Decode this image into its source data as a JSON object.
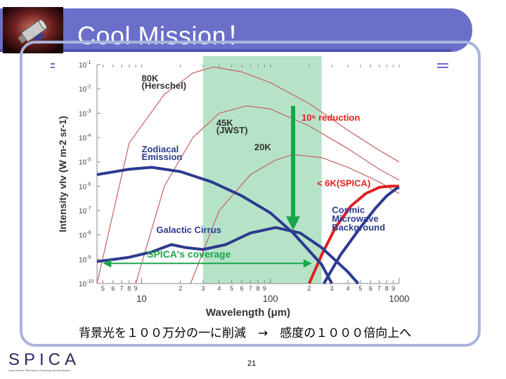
{
  "slide": {
    "title": "Cool Mission！",
    "caption": "背景光を１００万分の一に削減　→　感度の１０００倍向上へ",
    "page_number": "21",
    "logo_text": "SPICA",
    "logo_subtitle": "Space Infrared Telescope for Cosmology and Astrophysics",
    "accent_color": "#6a6fc9"
  },
  "chart_data": {
    "type": "line",
    "xlabel": "Wavelength (μm)",
    "ylabel": "Intensity vIv (W m-2 sr-1)",
    "x_scale": "log",
    "y_scale": "log",
    "xlim": [
      4.5,
      1000
    ],
    "ylim": [
      1e-10,
      0.1
    ],
    "x_major_ticks": [
      "10",
      "100",
      "1000"
    ],
    "x_minor_tick_labels": [
      "5",
      "6",
      "7",
      "8",
      "9",
      "2",
      "3",
      "4",
      "5",
      "6",
      "7",
      "8",
      "9",
      "2",
      "3",
      "4",
      "5",
      "6",
      "7",
      "8",
      "9"
    ],
    "y_tick_labels": [
      "10-1",
      "10-2",
      "10-3",
      "10-4",
      "10-5",
      "10-6",
      "10-7",
      "10-8",
      "10-9",
      "10-10"
    ],
    "highlight_band": {
      "x_range": [
        30,
        250
      ],
      "color": "#b6e3c8"
    },
    "spica_coverage": {
      "x_range": [
        5,
        210
      ],
      "label": "SPICA's coverage",
      "color": "#1aa54b"
    },
    "reduction_arrow": {
      "x": 150,
      "y_from": 0.002,
      "y_to": 2e-08,
      "label": "10⁶ reduction",
      "label_color": "#e02020",
      "color": "#1aa54b"
    },
    "series": [
      {
        "name": "80K (Herschel)",
        "color": "#c86060",
        "style": "thin",
        "points": [
          [
            4.5,
            1e-10
          ],
          [
            8,
            6e-05
          ],
          [
            15,
            0.006
          ],
          [
            25,
            0.045
          ],
          [
            36,
            0.08
          ],
          [
            60,
            0.05
          ],
          [
            100,
            0.018
          ],
          [
            200,
            0.0025
          ],
          [
            400,
            0.0002
          ],
          [
            700,
            3e-05
          ],
          [
            1000,
            1e-05
          ]
        ]
      },
      {
        "name": "45K (JWST)",
        "color": "#c86060",
        "style": "thin",
        "points": [
          [
            9,
            1e-10
          ],
          [
            15,
            1e-06
          ],
          [
            25,
            0.0001
          ],
          [
            40,
            0.001
          ],
          [
            65,
            0.002
          ],
          [
            100,
            0.0015
          ],
          [
            200,
            0.0003
          ],
          [
            400,
            3.5e-05
          ],
          [
            700,
            5e-06
          ],
          [
            1000,
            1.8e-06
          ]
        ]
      },
      {
        "name": "20K",
        "color": "#c86060",
        "style": "thin",
        "points": [
          [
            24,
            1e-10
          ],
          [
            40,
            1e-07
          ],
          [
            70,
            3e-06
          ],
          [
            110,
            1.2e-05
          ],
          [
            150,
            2e-05
          ],
          [
            250,
            1.5e-05
          ],
          [
            400,
            6e-06
          ],
          [
            700,
            1.5e-06
          ],
          [
            1000,
            5e-07
          ]
        ]
      },
      {
        "name": "6K(SPICA)",
        "color": "#e02020",
        "style": "bold",
        "points": [
          [
            200,
            1e-10
          ],
          [
            250,
            1.5e-09
          ],
          [
            320,
            2e-08
          ],
          [
            420,
            1.5e-07
          ],
          [
            550,
            5e-07
          ],
          [
            700,
            9e-07
          ],
          [
            850,
            1e-06
          ],
          [
            1000,
            1e-06
          ]
        ]
      },
      {
        "name": "Zodiacal Emission",
        "color": "#2c3a8f",
        "style": "bold",
        "points": [
          [
            4.5,
            3e-06
          ],
          [
            8,
            5e-06
          ],
          [
            12,
            6e-06
          ],
          [
            20,
            4e-06
          ],
          [
            35,
            1.5e-06
          ],
          [
            60,
            4e-07
          ],
          [
            100,
            8e-08
          ],
          [
            150,
            1.2e-08
          ],
          [
            250,
            6e-10
          ],
          [
            300,
            1e-10
          ]
        ]
      },
      {
        "name": "Galactic Cirrus",
        "color": "#2c3a8f",
        "style": "bold",
        "points": [
          [
            4.5,
            8e-10
          ],
          [
            8,
            1.2e-09
          ],
          [
            12,
            2e-09
          ],
          [
            17,
            4e-09
          ],
          [
            22,
            3e-09
          ],
          [
            30,
            2.5e-09
          ],
          [
            45,
            4e-09
          ],
          [
            70,
            1.2e-08
          ],
          [
            110,
            2e-08
          ],
          [
            170,
            1.2e-08
          ],
          [
            250,
            3e-09
          ],
          [
            400,
            3e-10
          ],
          [
            480,
            1e-10
          ]
        ]
      },
      {
        "name": "Cosmic Microwave Background",
        "color": "#2c3a8f",
        "style": "bold",
        "points": [
          [
            260,
            1e-10
          ],
          [
            350,
            1.5e-09
          ],
          [
            500,
            2e-08
          ],
          [
            650,
            1.2e-07
          ],
          [
            800,
            4e-07
          ],
          [
            950,
            8e-07
          ],
          [
            1000,
            9e-07
          ]
        ]
      }
    ],
    "annotations": [
      {
        "text": "80K",
        "x": 10,
        "y": 0.02,
        "color": "#333333"
      },
      {
        "text": "(Herschel)",
        "x": 10,
        "y": 0.01,
        "color": "#333333"
      },
      {
        "text": "45K",
        "x": 38,
        "y": 0.0003,
        "color": "#333333"
      },
      {
        "text": "(JWST)",
        "x": 38,
        "y": 0.00015,
        "color": "#333333"
      },
      {
        "text": "20K",
        "x": 75,
        "y": 3e-05,
        "color": "#333333"
      },
      {
        "text": "Zodiacal",
        "x": 10,
        "y": 2.5e-05,
        "color": "#2c3a8f"
      },
      {
        "text": "Emission",
        "x": 10,
        "y": 1.2e-05,
        "color": "#2c3a8f"
      },
      {
        "text": "< 6K(SPICA)",
        "x": 230,
        "y": 1e-06,
        "color": "#e02020"
      },
      {
        "text": "Galactic Cirrus",
        "x": 13,
        "y": 1.2e-08,
        "color": "#2c3a8f"
      },
      {
        "text": "Cosmic",
        "x": 300,
        "y": 8e-08,
        "color": "#2c3a8f"
      },
      {
        "text": "Microwave",
        "x": 300,
        "y": 3.5e-08,
        "color": "#2c3a8f"
      },
      {
        "text": "Background",
        "x": 300,
        "y": 1.5e-08,
        "color": "#2c3a8f"
      }
    ]
  }
}
